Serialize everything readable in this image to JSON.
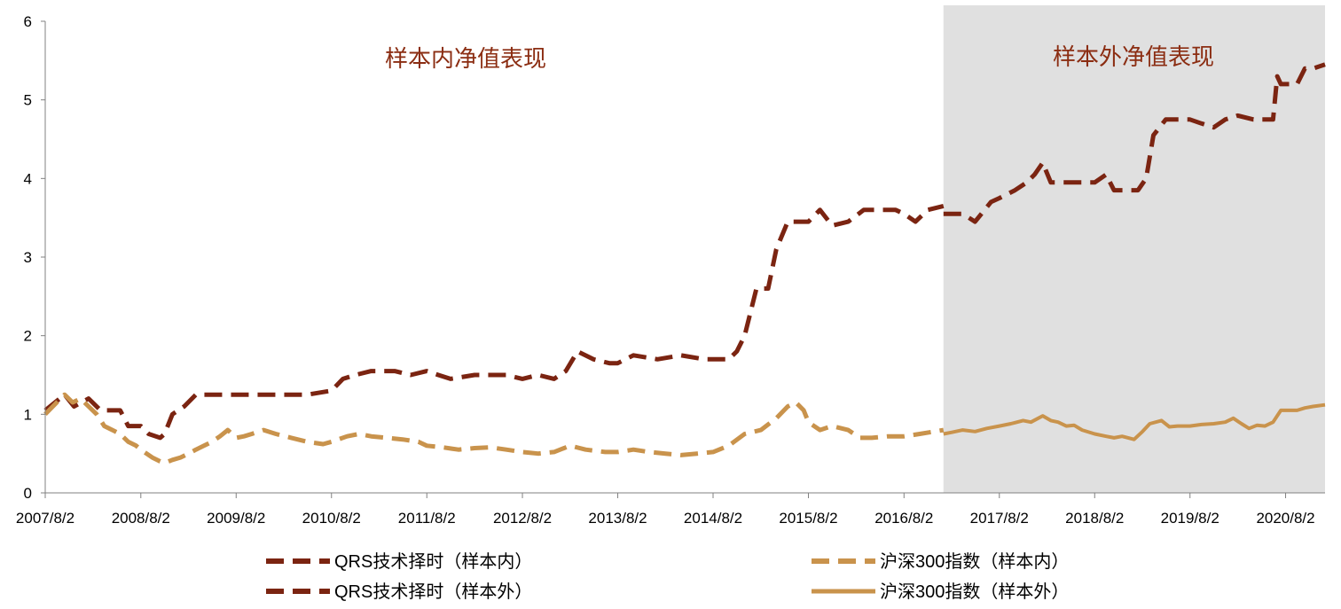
{
  "chart_data": {
    "type": "line",
    "x_ticks": [
      "2007/8/2",
      "2008/8/2",
      "2009/8/2",
      "2010/8/2",
      "2011/8/2",
      "2012/8/2",
      "2013/8/2",
      "2014/8/2",
      "2015/8/2",
      "2016/8/2",
      "2017/8/2",
      "2018/8/2",
      "2019/8/2",
      "2020/8/2"
    ],
    "y_ticks": [
      "0",
      "1",
      "2",
      "3",
      "4",
      "5",
      "6"
    ],
    "ylim": [
      0,
      6
    ],
    "xlim": [
      "2007/8/2",
      "2020/12/31"
    ],
    "grid": false,
    "legend_placement": "bottom",
    "out_of_sample_start": "2016/12/31",
    "annotations": [
      "样本内净值表现",
      "样本外净值表现"
    ],
    "shade_color": "#E0E0E0",
    "annotation_color": "#8B2D12",
    "series": [
      {
        "name": "QRS技术择时（样本内）",
        "color": "#7B2411",
        "style": "dashed",
        "x": [
          "2007/8/2",
          "2007/10/15",
          "2007/11/20",
          "2008/1/15",
          "2008/3/1",
          "2008/5/15",
          "2008/6/15",
          "2008/8/2",
          "2008/9/1",
          "2008/10/15",
          "2008/11/1",
          "2008/12/1",
          "2009/1/15",
          "2009/3/1",
          "2009/5/1",
          "2009/7/1",
          "2009/8/2",
          "2009/10/1",
          "2010/1/1",
          "2010/3/1",
          "2010/5/1",
          "2010/8/2",
          "2010/9/15",
          "2010/11/1",
          "2011/1/1",
          "2011/4/1",
          "2011/6/1",
          "2011/8/2",
          "2011/9/15",
          "2011/11/1",
          "2012/2/1",
          "2012/4/1",
          "2012/6/1",
          "2012/8/2",
          "2012/10/1",
          "2012/12/1",
          "2013/1/15",
          "2013/3/1",
          "2013/5/1",
          "2013/7/1",
          "2013/8/2",
          "2013/10/1",
          "2014/1/1",
          "2014/4/1",
          "2014/7/1",
          "2014/8/2",
          "2014/10/1",
          "2014/11/1",
          "2014/12/1",
          "2015/1/15",
          "2015/3/1",
          "2015/4/1",
          "2015/5/15",
          "2015/6/15",
          "2015/8/2",
          "2015/9/15",
          "2015/11/1",
          "2016/1/1",
          "2016/3/1",
          "2016/5/1",
          "2016/7/1",
          "2016/8/2",
          "2016/9/15",
          "2016/11/1",
          "2016/12/31"
        ],
        "y": [
          1.05,
          1.25,
          1.1,
          1.2,
          1.05,
          1.05,
          0.85,
          0.85,
          0.75,
          0.7,
          0.75,
          1.0,
          1.1,
          1.25,
          1.25,
          1.25,
          1.25,
          1.25,
          1.25,
          1.25,
          1.25,
          1.3,
          1.45,
          1.5,
          1.55,
          1.55,
          1.5,
          1.55,
          1.5,
          1.45,
          1.5,
          1.5,
          1.5,
          1.45,
          1.5,
          1.45,
          1.55,
          1.8,
          1.7,
          1.65,
          1.65,
          1.75,
          1.7,
          1.75,
          1.7,
          1.7,
          1.7,
          1.8,
          2.0,
          2.6,
          2.6,
          3.1,
          3.45,
          3.45,
          3.45,
          3.6,
          3.4,
          3.45,
          3.6,
          3.6,
          3.6,
          3.55,
          3.45,
          3.6,
          3.65
        ]
      },
      {
        "name": "QRS技术择时（样本外）",
        "color": "#7B2411",
        "style": "dashed",
        "x": [
          "2016/12/31",
          "2017/2/1",
          "2017/3/15",
          "2017/5/1",
          "2017/7/1",
          "2017/8/2",
          "2017/10/1",
          "2017/11/15",
          "2017/12/15",
          "2018/1/15",
          "2018/2/15",
          "2018/4/1",
          "2018/6/1",
          "2018/8/2",
          "2018/9/15",
          "2018/10/15",
          "2018/12/1",
          "2019/1/15",
          "2019/2/15",
          "2019/3/15",
          "2019/5/1",
          "2019/6/1",
          "2019/8/2",
          "2019/9/15",
          "2019/11/1",
          "2019/12/15",
          "2020/2/1",
          "2020/4/1",
          "2020/6/15",
          "2020/7/1",
          "2020/7/15",
          "2020/8/2",
          "2020/9/15",
          "2020/10/15",
          "2020/11/15",
          "2020/12/31"
        ],
        "y": [
          3.55,
          3.55,
          3.55,
          3.45,
          3.7,
          3.75,
          3.85,
          3.95,
          4.05,
          4.2,
          3.95,
          3.95,
          3.95,
          3.95,
          4.05,
          3.85,
          3.85,
          3.85,
          4.0,
          4.55,
          4.75,
          4.75,
          4.75,
          4.7,
          4.65,
          4.75,
          4.8,
          4.75,
          4.75,
          5.3,
          5.2,
          5.2,
          5.2,
          5.4,
          5.4,
          5.45
        ]
      },
      {
        "name": "沪深300指数（样本内）",
        "color": "#C9934C",
        "style": "dashed",
        "x": [
          "2007/8/2",
          "2007/9/15",
          "2007/10/15",
          "2007/11/15",
          "2007/12/15",
          "2008/1/15",
          "2008/2/15",
          "2008/3/15",
          "2008/4/15",
          "2008/5/15",
          "2008/6/15",
          "2008/7/15",
          "2008/8/2",
          "2008/9/15",
          "2008/10/15",
          "2008/11/1",
          "2008/12/1",
          "2009/1/1",
          "2009/2/1",
          "2009/3/1",
          "2009/4/1",
          "2009/5/1",
          "2009/6/1",
          "2009/7/1",
          "2009/8/2",
          "2009/9/1",
          "2009/10/1",
          "2009/11/15",
          "2010/1/1",
          "2010/3/1",
          "2010/5/1",
          "2010/7/1",
          "2010/8/2",
          "2010/10/1",
          "2010/11/15",
          "2011/1/1",
          "2011/3/1",
          "2011/5/1",
          "2011/7/1",
          "2011/8/2",
          "2011/10/1",
          "2011/12/1",
          "2012/2/1",
          "2012/4/1",
          "2012/6/1",
          "2012/8/2",
          "2012/10/1",
          "2012/12/1",
          "2013/2/1",
          "2013/4/1",
          "2013/6/15",
          "2013/8/2",
          "2013/10/1",
          "2013/12/1",
          "2014/2/1",
          "2014/4/1",
          "2014/6/1",
          "2014/8/2",
          "2014/10/1",
          "2014/12/1",
          "2015/2/1",
          "2015/4/1",
          "2015/5/15",
          "2015/6/15",
          "2015/7/15",
          "2015/8/2",
          "2015/9/15",
          "2015/11/1",
          "2016/1/1",
          "2016/2/15",
          "2016/4/1",
          "2016/6/1",
          "2016/8/2",
          "2016/10/1",
          "2016/12/31"
        ],
        "y": [
          1.0,
          1.15,
          1.25,
          1.15,
          1.2,
          1.1,
          1.0,
          0.85,
          0.8,
          0.75,
          0.65,
          0.6,
          0.55,
          0.45,
          0.4,
          0.38,
          0.42,
          0.45,
          0.5,
          0.55,
          0.6,
          0.65,
          0.72,
          0.8,
          0.7,
          0.72,
          0.75,
          0.8,
          0.75,
          0.7,
          0.65,
          0.62,
          0.65,
          0.72,
          0.75,
          0.72,
          0.7,
          0.68,
          0.65,
          0.6,
          0.58,
          0.55,
          0.57,
          0.58,
          0.55,
          0.52,
          0.5,
          0.52,
          0.6,
          0.55,
          0.52,
          0.52,
          0.55,
          0.52,
          0.5,
          0.48,
          0.5,
          0.52,
          0.6,
          0.75,
          0.8,
          0.95,
          1.1,
          1.15,
          1.05,
          0.9,
          0.8,
          0.85,
          0.8,
          0.7,
          0.7,
          0.72,
          0.72,
          0.75,
          0.8
        ]
      },
      {
        "name": "沪深300指数（样本外）",
        "color": "#C9934C",
        "style": "solid",
        "x": [
          "2016/12/31",
          "2017/2/1",
          "2017/3/15",
          "2017/5/1",
          "2017/6/15",
          "2017/8/2",
          "2017/9/15",
          "2017/11/1",
          "2017/12/1",
          "2018/1/15",
          "2018/2/15",
          "2018/3/15",
          "2018/4/15",
          "2018/5/15",
          "2018/6/15",
          "2018/8/2",
          "2018/9/15",
          "2018/10/15",
          "2018/11/15",
          "2018/12/31",
          "2019/2/1",
          "2019/3/1",
          "2019/4/15",
          "2019/5/15",
          "2019/6/15",
          "2019/8/2",
          "2019/9/15",
          "2019/11/1",
          "2019/12/15",
          "2020/1/15",
          "2020/2/15",
          "2020/3/15",
          "2020/4/15",
          "2020/5/15",
          "2020/6/15",
          "2020/7/15",
          "2020/8/2",
          "2020/9/15",
          "2020/10/15",
          "2020/11/15",
          "2020/12/31"
        ],
        "y": [
          0.75,
          0.77,
          0.8,
          0.78,
          0.82,
          0.85,
          0.88,
          0.92,
          0.9,
          0.98,
          0.92,
          0.9,
          0.85,
          0.86,
          0.8,
          0.75,
          0.72,
          0.7,
          0.72,
          0.68,
          0.78,
          0.88,
          0.92,
          0.84,
          0.85,
          0.85,
          0.87,
          0.88,
          0.9,
          0.95,
          0.88,
          0.82,
          0.86,
          0.85,
          0.9,
          1.05,
          1.05,
          1.05,
          1.08,
          1.1,
          1.12
        ]
      }
    ]
  }
}
